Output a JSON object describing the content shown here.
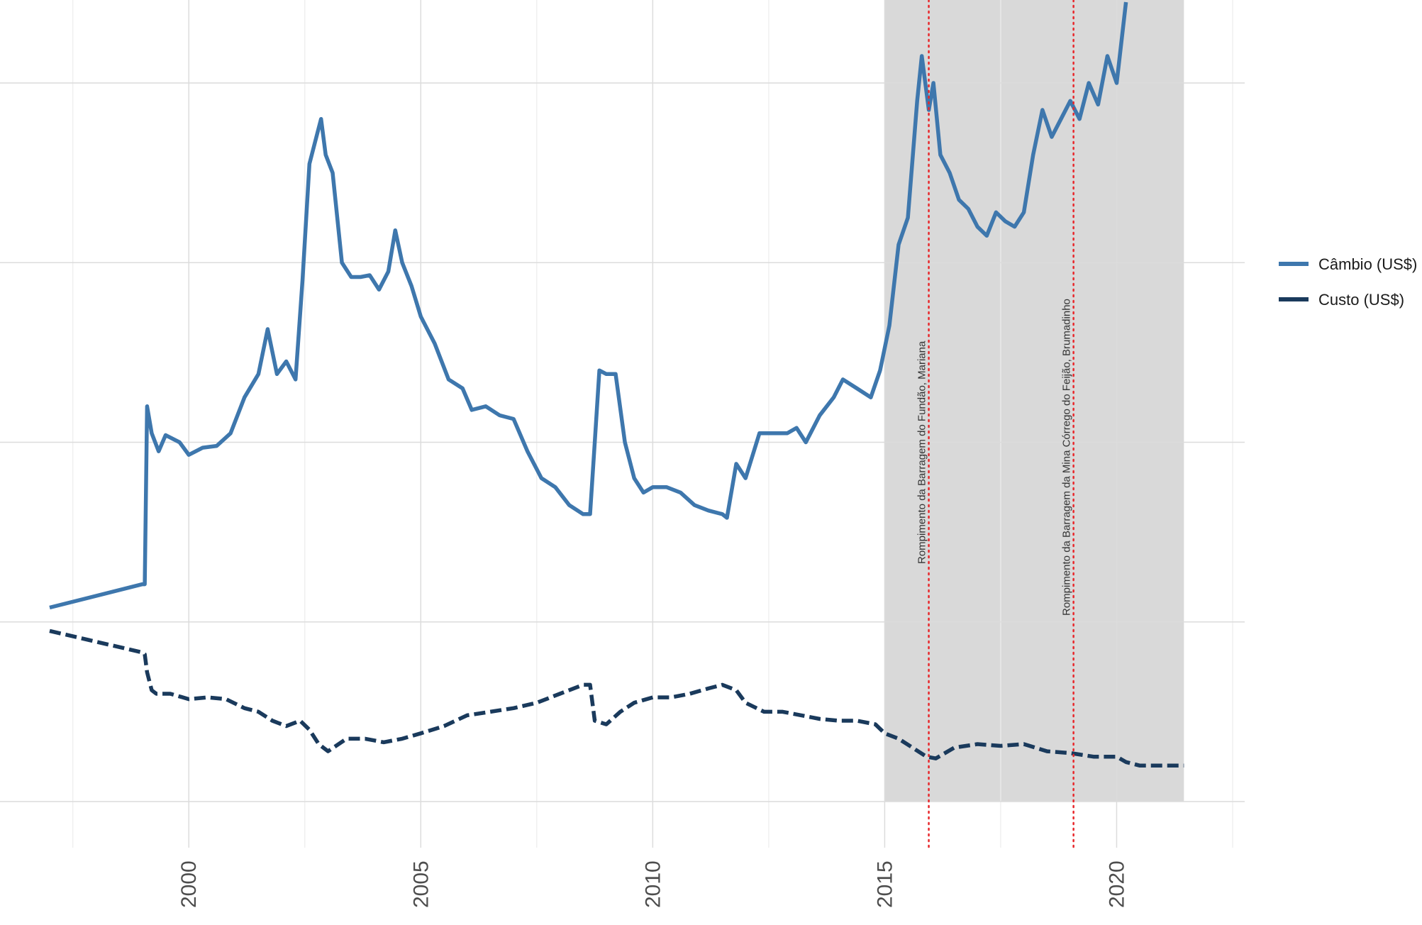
{
  "chart_data": {
    "type": "line",
    "title": "",
    "xlabel": "",
    "ylabel": "",
    "xlim": [
      1997.0,
      2022.5
    ],
    "x_ticks": [
      2000,
      2005,
      2010,
      2015,
      2020
    ],
    "x_tick_labels": [
      "2000",
      "2005",
      "2010",
      "2015",
      "2020"
    ],
    "y_tick_labels_shown": false,
    "grid": true,
    "legend_position": "right",
    "shaded_period": [
      2015.0,
      2021.45
    ],
    "annotations": [
      {
        "x": 2015.95,
        "label": "Rompimento da Barragem do Fundão, Mariana",
        "color": "#e8262a"
      },
      {
        "x": 2019.07,
        "label": "Rompimento da Barragem da Mina Córrego do Feijão, Brumadinho",
        "color": "#e8262a"
      }
    ],
    "series": [
      {
        "name": "Câmbio (US$)",
        "color": "#3e77ad",
        "dash": "solid",
        "x": [
          1997.0,
          1999.0,
          1999.05,
          1999.1,
          1999.2,
          1999.35,
          1999.5,
          1999.8,
          2000.0,
          2000.3,
          2000.6,
          2000.9,
          2001.2,
          2001.5,
          2001.7,
          2001.9,
          2002.1,
          2002.3,
          2002.45,
          2002.6,
          2002.75,
          2002.85,
          2002.95,
          2003.1,
          2003.3,
          2003.5,
          2003.7,
          2003.9,
          2004.1,
          2004.3,
          2004.45,
          2004.6,
          2004.8,
          2005.0,
          2005.3,
          2005.6,
          2005.9,
          2006.1,
          2006.4,
          2006.7,
          2007.0,
          2007.3,
          2007.6,
          2007.9,
          2008.2,
          2008.5,
          2008.65,
          2008.75,
          2008.85,
          2009.0,
          2009.2,
          2009.4,
          2009.6,
          2009.8,
          2010.0,
          2010.3,
          2010.6,
          2010.9,
          2011.2,
          2011.5,
          2011.6,
          2011.8,
          2012.0,
          2012.3,
          2012.6,
          2012.9,
          2013.1,
          2013.3,
          2013.6,
          2013.9,
          2014.1,
          2014.4,
          2014.7,
          2014.9,
          2015.1,
          2015.3,
          2015.5,
          2015.7,
          2015.8,
          2015.95,
          2016.05,
          2016.2,
          2016.4,
          2016.6,
          2016.8,
          2017.0,
          2017.2,
          2017.4,
          2017.6,
          2017.8,
          2018.0,
          2018.2,
          2018.4,
          2018.6,
          2018.8,
          2019.0,
          2019.2,
          2019.4,
          2019.6,
          2019.8,
          2020.0,
          2020.2
        ],
        "values": [
          1.08,
          1.21,
          1.21,
          2.2,
          2.05,
          1.95,
          2.04,
          2.0,
          1.93,
          1.97,
          1.98,
          2.05,
          2.25,
          2.38,
          2.63,
          2.38,
          2.45,
          2.35,
          2.9,
          3.55,
          3.7,
          3.8,
          3.6,
          3.5,
          3.0,
          2.92,
          2.92,
          2.93,
          2.85,
          2.95,
          3.18,
          3.0,
          2.87,
          2.7,
          2.55,
          2.35,
          2.3,
          2.18,
          2.2,
          2.15,
          2.13,
          1.95,
          1.8,
          1.75,
          1.65,
          1.6,
          1.6,
          2.0,
          2.4,
          2.38,
          2.38,
          2.0,
          1.8,
          1.72,
          1.75,
          1.75,
          1.72,
          1.65,
          1.62,
          1.6,
          1.58,
          1.88,
          1.8,
          2.05,
          2.05,
          2.05,
          2.08,
          2.0,
          2.15,
          2.25,
          2.35,
          2.3,
          2.25,
          2.4,
          2.65,
          3.1,
          3.25,
          3.9,
          4.15,
          3.85,
          4.0,
          3.6,
          3.5,
          3.35,
          3.3,
          3.2,
          3.15,
          3.28,
          3.23,
          3.2,
          3.28,
          3.6,
          3.85,
          3.7,
          3.8,
          3.9,
          3.8,
          4.0,
          3.88,
          4.15,
          4.0,
          4.45
        ]
      },
      {
        "name": "Custo (US$)",
        "color": "#1a3a5c",
        "dash": "dashed",
        "x": [
          1997.0,
          1999.0,
          1999.05,
          1999.1,
          1999.2,
          1999.3,
          1999.6,
          2000.0,
          2000.4,
          2000.8,
          2001.2,
          2001.5,
          2001.8,
          2002.1,
          2002.4,
          2002.6,
          2002.8,
          2003.0,
          2003.4,
          2003.8,
          2004.2,
          2004.6,
          2005.0,
          2005.5,
          2006.0,
          2006.5,
          2007.0,
          2007.5,
          2008.0,
          2008.5,
          2008.65,
          2008.75,
          2009.0,
          2009.3,
          2009.6,
          2010.0,
          2010.4,
          2010.8,
          2011.2,
          2011.5,
          2011.8,
          2012.0,
          2012.4,
          2012.8,
          2013.2,
          2013.6,
          2014.0,
          2014.4,
          2014.8,
          2015.0,
          2015.3,
          2015.6,
          2015.9,
          2016.1,
          2016.5,
          2017.0,
          2017.5,
          2018.0,
          2018.5,
          2019.0,
          2019.5,
          2020.0,
          2020.2,
          2020.5,
          2021.0,
          2021.45
        ],
        "values": [
          0.95,
          0.83,
          0.82,
          0.72,
          0.62,
          0.6,
          0.6,
          0.57,
          0.58,
          0.57,
          0.52,
          0.5,
          0.45,
          0.42,
          0.45,
          0.4,
          0.32,
          0.28,
          0.35,
          0.35,
          0.33,
          0.35,
          0.38,
          0.42,
          0.48,
          0.5,
          0.52,
          0.55,
          0.6,
          0.65,
          0.65,
          0.45,
          0.43,
          0.5,
          0.55,
          0.58,
          0.58,
          0.6,
          0.63,
          0.65,
          0.62,
          0.55,
          0.5,
          0.5,
          0.48,
          0.46,
          0.45,
          0.45,
          0.43,
          0.38,
          0.35,
          0.3,
          0.25,
          0.24,
          0.3,
          0.32,
          0.31,
          0.32,
          0.28,
          0.27,
          0.25,
          0.25,
          0.22,
          0.2,
          0.2,
          0.2
        ]
      }
    ]
  }
}
